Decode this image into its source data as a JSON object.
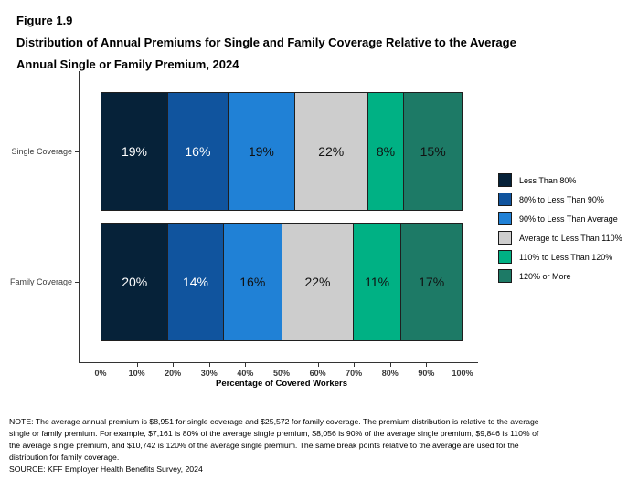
{
  "figure": {
    "label": "Figure 1.9",
    "title_line1": "Distribution of Annual Premiums for Single and Family Coverage Relative to the Average",
    "title_line2": "Annual Single or Family Premium, 2024"
  },
  "chart_data": {
    "type": "bar",
    "orientation": "horizontal",
    "stacked": true,
    "grid": false,
    "legend_position": "right",
    "categories": [
      "Single Coverage",
      "Family Coverage"
    ],
    "series": [
      {
        "name": "Less Than 80%",
        "color": "#062239",
        "label_color": "#ffffff",
        "values": [
          19,
          20
        ]
      },
      {
        "name": "80% to Less Than 90%",
        "color": "#10549e",
        "label_color": "#ffffff",
        "values": [
          16,
          14
        ]
      },
      {
        "name": "90% to Less Than Average",
        "color": "#2081d6",
        "label_color": "#111111",
        "values": [
          19,
          16
        ]
      },
      {
        "name": "Average to Less Than 110%",
        "color": "#cdcdcd",
        "label_color": "#111111",
        "values": [
          22,
          22
        ]
      },
      {
        "name": "110% to Less Than 120%",
        "color": "#00b184",
        "label_color": "#111111",
        "values": [
          8,
          11
        ]
      },
      {
        "name": "120% or More",
        "color": "#1d7a66",
        "label_color": "#111111",
        "values": [
          15,
          17
        ]
      }
    ],
    "value_suffix": "%",
    "xlabel": "Percentage of Covered Workers",
    "x_ticks": [
      "0%",
      "10%",
      "20%",
      "30%",
      "40%",
      "50%",
      "60%",
      "70%",
      "80%",
      "90%",
      "100%"
    ],
    "xlim": [
      0,
      100
    ]
  },
  "notes": {
    "lines": [
      "NOTE: The average annual premium is $8,951 for single coverage and $25,572 for family coverage. The premium distribution is relative to the average",
      "single or family premium. For example, $7,161 is 80% of the average single premium, $8,056 is 90% of the average single premium, $9,846 is 110% of",
      "the average single premium, and $10,742 is 120% of the average single premium. The same break points relative to the average are used for the",
      "distribution for family coverage."
    ],
    "source": "SOURCE: KFF Employer Health Benefits Survey, 2024"
  }
}
